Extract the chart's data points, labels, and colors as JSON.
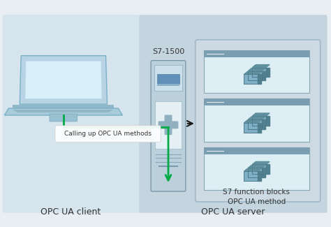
{
  "bg_color": "#e8eef2",
  "left_panel_color": "#d6e4ed",
  "right_panel_color": "#c5d5df",
  "inner_box_color": "#cddae3",
  "window_bg": "#ddeef5",
  "window_border": "#9ab0c0",
  "window_title_bar": "#7a9eb0",
  "arrow_color": "#1a1a1a",
  "green_color": "#00aa44",
  "text_color": "#333333",
  "opc_client_label": "OPC UA client",
  "opc_server_label": "OPC UA server",
  "s7_label": "S7-1500",
  "calling_label": "Calling up OPC UA methods",
  "s7_fb_label": "S7 function blocks",
  "opc_ua_method_label": "OPC UA method",
  "figsize": [
    4.74,
    3.25
  ],
  "dpi": 100
}
